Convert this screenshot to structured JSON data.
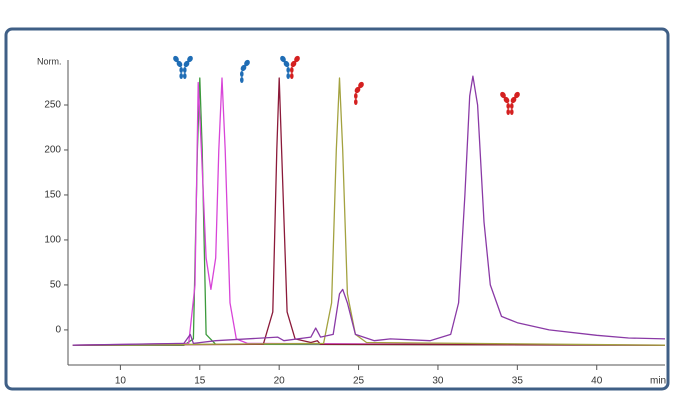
{
  "chart_data": {
    "type": "line",
    "y_label": "Norm.",
    "x_label": "min",
    "xlim": [
      6.7,
      44.3
    ],
    "ylim": [
      -39,
      300
    ],
    "xticks": [
      10,
      15,
      20,
      25,
      30,
      35,
      40
    ],
    "yticks": [
      0,
      50,
      100,
      150,
      200,
      250
    ],
    "series": [
      {
        "color": "#3c9a3c",
        "x": [
          7,
          14,
          14.6,
          14.85,
          15.0,
          15.15,
          15.4,
          16,
          44.3
        ],
        "y": [
          -17,
          -17,
          -10,
          200,
          280,
          200,
          -5,
          -16,
          -17
        ]
      },
      {
        "color": "#d845d8",
        "x": [
          7,
          14.3,
          14.7,
          14.9,
          15.1,
          15.4,
          15.7,
          16.0,
          16.2,
          16.4,
          16.6,
          16.9,
          17.3,
          18,
          44.3
        ],
        "y": [
          -17,
          -15,
          50,
          275,
          200,
          80,
          45,
          80,
          200,
          280,
          200,
          30,
          -10,
          -15,
          -17
        ]
      },
      {
        "color": "#8b1a3a",
        "x": [
          7,
          19,
          19.6,
          19.85,
          20.0,
          20.15,
          20.5,
          21,
          22,
          22.4,
          22.6,
          44.3
        ],
        "y": [
          -17,
          -16,
          20,
          200,
          280,
          200,
          20,
          -10,
          -14,
          -12,
          -16,
          -17
        ]
      },
      {
        "color": "#a3a23f",
        "x": [
          7,
          22.8,
          23.3,
          23.6,
          23.8,
          24.0,
          24.3,
          24.8,
          25.5,
          44.3
        ],
        "y": [
          -17,
          -15,
          30,
          200,
          280,
          200,
          40,
          -5,
          -14,
          -17
        ]
      },
      {
        "color": "#8a3aa6",
        "x": [
          7,
          14.0,
          14.4,
          14.6,
          16,
          19.9,
          20.3,
          22.0,
          22.3,
          22.6,
          23.4,
          23.8,
          24.0,
          24.3,
          24.8,
          26,
          27,
          29.5,
          30.8,
          31.3,
          31.7,
          32.0,
          32.2,
          32.5,
          32.9,
          33.3,
          34,
          35,
          37,
          40,
          42,
          44.3
        ],
        "y": [
          -17,
          -15,
          -5,
          -15,
          -12,
          -8,
          -12,
          -8,
          2,
          -8,
          -5,
          40,
          45,
          30,
          -5,
          -12,
          -10,
          -12,
          -5,
          30,
          150,
          260,
          282,
          250,
          120,
          50,
          15,
          8,
          0,
          -6,
          -9,
          -10
        ]
      }
    ]
  }
}
